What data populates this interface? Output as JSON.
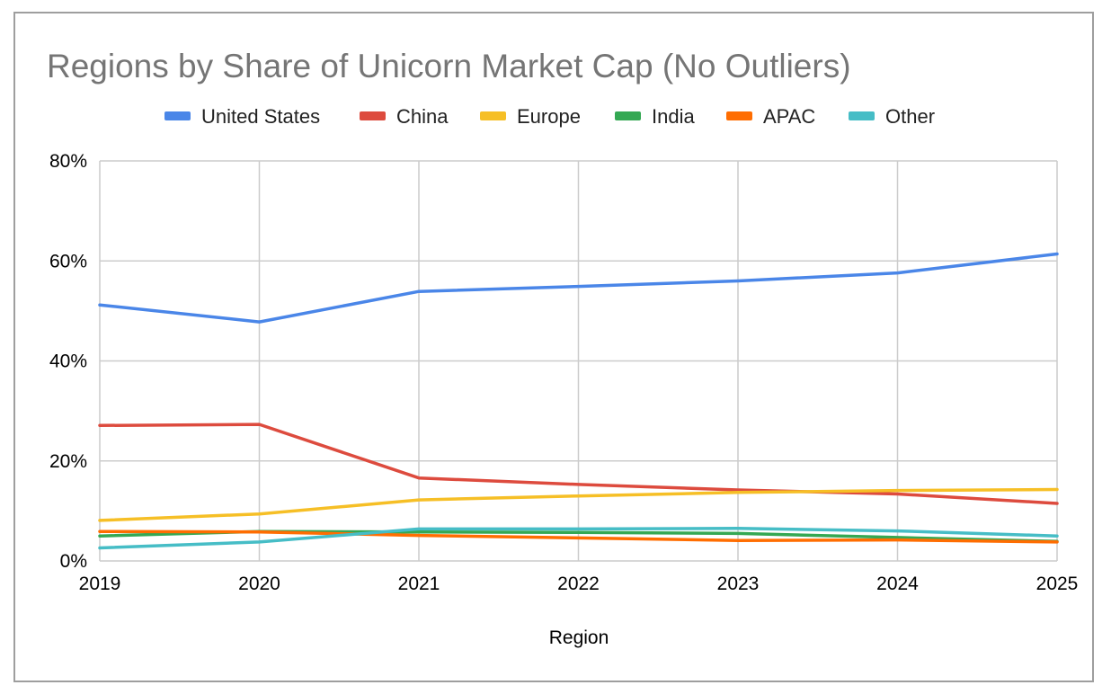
{
  "chart_data": {
    "type": "line",
    "title": "Regions by Share of Unicorn Market Cap (No Outliers)",
    "xlabel": "Region",
    "ylabel": "",
    "x": [
      "2019",
      "2020",
      "2021",
      "2022",
      "2023",
      "2024",
      "2025"
    ],
    "ylim": [
      0,
      80
    ],
    "yticks": [
      0,
      20,
      40,
      60,
      80
    ],
    "ytick_labels": [
      "0%",
      "20%",
      "40%",
      "60%",
      "80%"
    ],
    "grid": true,
    "legend_position": "top",
    "series": [
      {
        "name": "United States",
        "color": "#4a86e8",
        "values": [
          51.2,
          47.8,
          53.9,
          54.9,
          56.0,
          57.6,
          61.4
        ]
      },
      {
        "name": "China",
        "color": "#dd4b3e",
        "values": [
          27.1,
          27.3,
          16.6,
          15.3,
          14.2,
          13.4,
          11.5
        ]
      },
      {
        "name": "Europe",
        "color": "#f6bf26",
        "values": [
          8.1,
          9.4,
          12.2,
          13.0,
          13.7,
          14.1,
          14.3
        ]
      },
      {
        "name": "India",
        "color": "#34a853",
        "values": [
          5.0,
          5.9,
          5.8,
          5.7,
          5.5,
          4.7,
          3.9
        ]
      },
      {
        "name": "APAC",
        "color": "#ff6d01",
        "values": [
          5.9,
          5.8,
          5.1,
          4.6,
          4.1,
          4.2,
          3.8
        ]
      },
      {
        "name": "Other",
        "color": "#46bdc6",
        "values": [
          2.6,
          3.8,
          6.4,
          6.4,
          6.5,
          6.0,
          5.0
        ]
      }
    ]
  }
}
